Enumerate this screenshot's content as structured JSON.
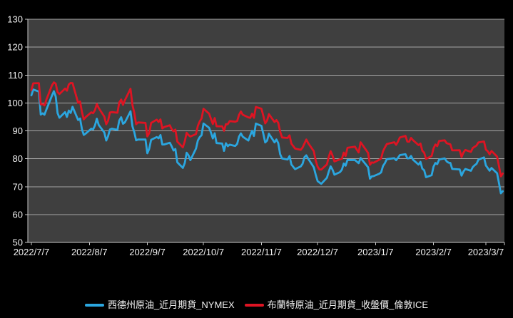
{
  "chart_data": {
    "type": "line",
    "title": "",
    "xlabel": "",
    "ylabel": "",
    "ylim": [
      50,
      130
    ],
    "ytick_step": 10,
    "grid": "horizontal",
    "legend_position": "bottom",
    "plot_bg": "#3F3F3F",
    "outer_bg": "#000000",
    "grid_color": "#A6A6A6",
    "axis_color": "#C9C9C9",
    "label_color": "#F0F0F0",
    "xticks": [
      "2022/7/7",
      "2022/8/7",
      "2022/9/7",
      "2022/10/7",
      "2022/11/7",
      "2022/12/7",
      "2023/1/7",
      "2023/2/7",
      "2023/3/7"
    ],
    "x": [
      "2022/7/7",
      "2022/7/8",
      "2022/7/11",
      "2022/7/12",
      "2022/7/13",
      "2022/7/14",
      "2022/7/15",
      "2022/7/18",
      "2022/7/19",
      "2022/7/20",
      "2022/7/21",
      "2022/7/22",
      "2022/7/25",
      "2022/7/26",
      "2022/7/27",
      "2022/7/28",
      "2022/7/29",
      "2022/8/1",
      "2022/8/2",
      "2022/8/3",
      "2022/8/4",
      "2022/8/5",
      "2022/8/8",
      "2022/8/9",
      "2022/8/10",
      "2022/8/11",
      "2022/8/12",
      "2022/8/15",
      "2022/8/16",
      "2022/8/17",
      "2022/8/18",
      "2022/8/19",
      "2022/8/22",
      "2022/8/23",
      "2022/8/24",
      "2022/8/25",
      "2022/8/26",
      "2022/8/29",
      "2022/8/30",
      "2022/8/31",
      "2022/9/1",
      "2022/9/2",
      "2022/9/6",
      "2022/9/7",
      "2022/9/8",
      "2022/9/9",
      "2022/9/12",
      "2022/9/13",
      "2022/9/14",
      "2022/9/15",
      "2022/9/16",
      "2022/9/19",
      "2022/9/20",
      "2022/9/21",
      "2022/9/22",
      "2022/9/23",
      "2022/9/26",
      "2022/9/27",
      "2022/9/28",
      "2022/9/29",
      "2022/9/30",
      "2022/10/3",
      "2022/10/4",
      "2022/10/5",
      "2022/10/6",
      "2022/10/7",
      "2022/10/10",
      "2022/10/11",
      "2022/10/12",
      "2022/10/13",
      "2022/10/14",
      "2022/10/17",
      "2022/10/18",
      "2022/10/19",
      "2022/10/20",
      "2022/10/21",
      "2022/10/24",
      "2022/10/25",
      "2022/10/26",
      "2022/10/27",
      "2022/10/28",
      "2022/10/31",
      "2022/11/1",
      "2022/11/2",
      "2022/11/3",
      "2022/11/4",
      "2022/11/7",
      "2022/11/8",
      "2022/11/9",
      "2022/11/10",
      "2022/11/11",
      "2022/11/14",
      "2022/11/15",
      "2022/11/16",
      "2022/11/17",
      "2022/11/18",
      "2022/11/21",
      "2022/11/22",
      "2022/11/23",
      "2022/11/25",
      "2022/11/28",
      "2022/11/29",
      "2022/11/30",
      "2022/12/1",
      "2022/12/2",
      "2022/12/5",
      "2022/12/6",
      "2022/12/7",
      "2022/12/8",
      "2022/12/9",
      "2022/12/12",
      "2022/12/13",
      "2022/12/14",
      "2022/12/15",
      "2022/12/16",
      "2022/12/19",
      "2022/12/20",
      "2022/12/21",
      "2022/12/22",
      "2022/12/23",
      "2022/12/27",
      "2022/12/28",
      "2022/12/29",
      "2022/12/30",
      "2023/1/3",
      "2023/1/4",
      "2023/1/5",
      "2023/1/6",
      "2023/1/9",
      "2023/1/10",
      "2023/1/11",
      "2023/1/12",
      "2023/1/13",
      "2023/1/17",
      "2023/1/18",
      "2023/1/19",
      "2023/1/20",
      "2023/1/23",
      "2023/1/24",
      "2023/1/25",
      "2023/1/26",
      "2023/1/27",
      "2023/1/30",
      "2023/1/31",
      "2023/2/1",
      "2023/2/2",
      "2023/2/3",
      "2023/2/6",
      "2023/2/7",
      "2023/2/8",
      "2023/2/9",
      "2023/2/10",
      "2023/2/13",
      "2023/2/14",
      "2023/2/15",
      "2023/2/16",
      "2023/2/17",
      "2023/2/21",
      "2023/2/22",
      "2023/2/23",
      "2023/2/24",
      "2023/2/27",
      "2023/2/28",
      "2023/3/1",
      "2023/3/2",
      "2023/3/3",
      "2023/3/6",
      "2023/3/7",
      "2023/3/8",
      "2023/3/9",
      "2023/3/10",
      "2023/3/13",
      "2023/3/14",
      "2023/3/15",
      "2023/3/16"
    ],
    "series": [
      {
        "id": "wti",
        "name": "西德州原油_近月期貨_NYMEX",
        "color": "#2BA6DF",
        "values": [
          102.73,
          104.79,
          104.09,
          95.84,
          96.3,
          95.78,
          97.59,
          102.6,
          104.22,
          102.26,
          96.35,
          94.7,
          96.7,
          94.98,
          97.26,
          96.42,
          98.62,
          93.89,
          94.42,
          90.66,
          88.54,
          89.01,
          90.76,
          90.5,
          91.93,
          94.34,
          92.09,
          89.41,
          86.53,
          88.11,
          90.5,
          90.77,
          90.36,
          93.74,
          94.89,
          92.52,
          93.06,
          97.01,
          91.64,
          89.55,
          86.61,
          86.87,
          86.88,
          81.94,
          83.54,
          86.79,
          87.78,
          87.31,
          88.48,
          85.1,
          85.11,
          85.73,
          84.45,
          82.94,
          83.49,
          78.74,
          76.71,
          78.5,
          82.15,
          81.23,
          79.49,
          83.63,
          86.52,
          87.76,
          88.45,
          92.64,
          91.13,
          89.35,
          87.27,
          89.11,
          85.61,
          85.46,
          82.82,
          85.55,
          84.51,
          85.05,
          84.58,
          85.32,
          87.91,
          89.08,
          87.9,
          86.53,
          88.37,
          90.0,
          88.17,
          92.61,
          91.79,
          88.91,
          85.83,
          86.47,
          88.96,
          85.87,
          86.92,
          85.59,
          81.64,
          80.08,
          79.73,
          80.95,
          77.94,
          76.28,
          77.24,
          78.2,
          80.55,
          81.22,
          79.98,
          76.93,
          74.25,
          72.01,
          71.46,
          71.02,
          73.17,
          75.39,
          77.28,
          76.11,
          74.29,
          75.19,
          76.09,
          78.29,
          77.49,
          79.56,
          79.53,
          78.96,
          78.4,
          80.26,
          76.93,
          72.84,
          73.67,
          73.77,
          74.63,
          75.12,
          77.41,
          78.39,
          79.86,
          80.18,
          79.48,
          80.33,
          81.31,
          81.62,
          80.13,
          80.15,
          81.01,
          79.68,
          77.9,
          78.87,
          76.41,
          75.88,
          73.39,
          74.11,
          77.14,
          78.47,
          78.06,
          79.72,
          80.14,
          79.06,
          78.59,
          78.49,
          76.34,
          76.16,
          73.95,
          75.39,
          76.32,
          75.68,
          77.05,
          77.69,
          78.16,
          79.68,
          80.46,
          77.58,
          76.66,
          75.72,
          76.68,
          74.8,
          71.33,
          67.61,
          68.35
        ]
      },
      {
        "id": "brent",
        "name": "布蘭特原油_近月期貨_收盤價_倫敦ICE",
        "color": "#DE1423",
        "values": [
          104.65,
          107.02,
          107.1,
          99.49,
          99.57,
          99.1,
          101.16,
          106.27,
          107.35,
          106.92,
          103.86,
          103.2,
          105.15,
          104.4,
          106.62,
          107.14,
          107.1,
          100.03,
          100.54,
          96.78,
          94.12,
          94.92,
          96.65,
          96.31,
          97.4,
          99.6,
          98.15,
          95.1,
          92.34,
          93.65,
          96.59,
          96.72,
          96.48,
          100.22,
          101.22,
          99.34,
          100.99,
          105.09,
          99.31,
          96.49,
          92.36,
          93.02,
          92.83,
          88.0,
          89.15,
          92.84,
          94.0,
          93.17,
          94.1,
          90.84,
          91.35,
          92.0,
          90.62,
          89.83,
          90.46,
          86.15,
          84.06,
          86.27,
          89.32,
          88.49,
          87.96,
          88.86,
          91.8,
          93.37,
          94.42,
          97.92,
          96.19,
          94.29,
          92.45,
          94.57,
          91.63,
          91.62,
          90.03,
          92.41,
          92.38,
          93.5,
          93.26,
          93.52,
          95.69,
          96.96,
          95.77,
          94.83,
          94.65,
          96.16,
          94.67,
          98.57,
          97.92,
          95.36,
          92.65,
          93.67,
          95.99,
          93.14,
          93.86,
          92.86,
          89.78,
          87.62,
          87.45,
          88.36,
          85.41,
          83.63,
          83.19,
          84.03,
          85.43,
          86.88,
          85.57,
          82.68,
          79.35,
          77.17,
          76.15,
          76.1,
          77.99,
          80.68,
          82.7,
          81.21,
          79.04,
          79.8,
          79.99,
          82.2,
          80.98,
          83.92,
          84.33,
          83.26,
          82.26,
          85.91,
          82.1,
          77.84,
          78.69,
          78.57,
          79.65,
          80.1,
          82.67,
          84.03,
          85.28,
          85.92,
          84.98,
          86.16,
          87.63,
          88.19,
          86.13,
          86.12,
          87.47,
          86.66,
          84.9,
          85.46,
          82.84,
          82.17,
          79.94,
          80.99,
          83.69,
          85.09,
          84.5,
          86.39,
          86.61,
          85.58,
          85.38,
          85.14,
          83.0,
          83.05,
          80.6,
          82.21,
          83.16,
          82.45,
          83.89,
          84.31,
          84.75,
          85.83,
          86.18,
          83.29,
          82.66,
          81.59,
          82.78,
          80.77,
          77.45,
          73.69,
          74.7
        ]
      }
    ]
  },
  "legend": {
    "wti_label": "西德州原油_近月期貨_NYMEX",
    "brent_label": "布蘭特原油_近月期貨_收盤價_倫敦ICE"
  }
}
